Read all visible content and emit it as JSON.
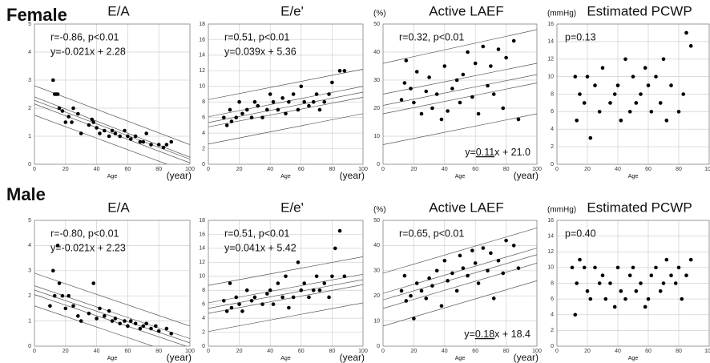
{
  "panel_labels": [
    "Female",
    "Male"
  ],
  "chart_data": [
    {
      "type": "scatter",
      "title": "E/A",
      "xlabel": "Age",
      "x_unit": "(year)",
      "xlim": [
        0,
        100
      ],
      "xticks": [
        0,
        20,
        40,
        60,
        80,
        100
      ],
      "ylim": [
        0,
        5
      ],
      "yticks": [
        0,
        1,
        2,
        3,
        4,
        5
      ],
      "grid": true,
      "color": "#000000",
      "annotations": [
        "r=-0.86, p<0.01",
        "y=-0.021x + 2.28"
      ],
      "x": [
        12,
        13,
        14,
        15,
        16,
        18,
        20,
        22,
        24,
        25,
        28,
        30,
        35,
        37,
        38,
        40,
        42,
        45,
        48,
        50,
        52,
        55,
        58,
        60,
        62,
        65,
        68,
        70,
        72,
        75,
        80,
        83,
        85,
        88
      ],
      "values": [
        3.0,
        2.5,
        2.5,
        2.5,
        2.0,
        1.9,
        1.5,
        1.7,
        1.5,
        2.0,
        1.8,
        1.1,
        1.4,
        1.6,
        1.5,
        1.3,
        1.1,
        1.2,
        1.0,
        1.2,
        1.1,
        1.0,
        1.2,
        1.0,
        0.9,
        1.0,
        0.8,
        0.8,
        1.1,
        0.7,
        0.7,
        0.6,
        0.7,
        0.8
      ],
      "lines": [
        {
          "x": [
            0,
            100
          ],
          "values": [
            2.8,
            0.7
          ]
        },
        {
          "x": [
            0,
            100
          ],
          "values": [
            2.4,
            0.25
          ]
        },
        {
          "x": [
            0,
            100
          ],
          "values": [
            2.28,
            0.18
          ]
        },
        {
          "x": [
            0,
            100
          ],
          "values": [
            2.15,
            0.05
          ]
        },
        {
          "x": [
            0,
            100
          ],
          "values": [
            1.75,
            -0.3
          ]
        }
      ]
    },
    {
      "type": "scatter",
      "title": "E/e'",
      "xlabel": "Age",
      "x_unit": "(year)",
      "xlim": [
        0,
        100
      ],
      "xticks": [
        0,
        20,
        40,
        60,
        80,
        100
      ],
      "ylim": [
        0,
        18
      ],
      "yticks": [
        0,
        2,
        4,
        6,
        8,
        10,
        12,
        14,
        16,
        18
      ],
      "grid": true,
      "color": "#000000",
      "annotations": [
        "r=0.51, p<0.01",
        "y=0.039x + 5.36"
      ],
      "x": [
        10,
        12,
        14,
        15,
        18,
        20,
        22,
        25,
        28,
        30,
        32,
        35,
        38,
        40,
        42,
        45,
        48,
        50,
        52,
        55,
        58,
        60,
        62,
        65,
        68,
        70,
        72,
        75,
        78,
        80,
        85,
        88
      ],
      "values": [
        6,
        5,
        7,
        5.5,
        6,
        8,
        6.5,
        7,
        6,
        8,
        7.5,
        6,
        7,
        9,
        8,
        7,
        8.5,
        6.5,
        8,
        9,
        7,
        10,
        8,
        7.5,
        8,
        9,
        7,
        8,
        9,
        10.5,
        12,
        12
      ],
      "lines": [
        {
          "x": [
            0,
            100
          ],
          "values": [
            8.3,
            12.2
          ]
        },
        {
          "x": [
            0,
            100
          ],
          "values": [
            6.1,
            10.0
          ]
        },
        {
          "x": [
            0,
            100
          ],
          "values": [
            5.36,
            9.26
          ]
        },
        {
          "x": [
            0,
            100
          ],
          "values": [
            4.8,
            8.6
          ]
        },
        {
          "x": [
            0,
            100
          ],
          "values": [
            2.6,
            6.5
          ]
        }
      ]
    },
    {
      "type": "scatter",
      "title": "Active LAEF",
      "y_unit": "(%)",
      "xlabel": "Age",
      "x_unit": "(year)",
      "xlim": [
        0,
        100
      ],
      "xticks": [
        0,
        20,
        40,
        60,
        80,
        100
      ],
      "ylim": [
        0,
        50
      ],
      "yticks": [
        0,
        10,
        20,
        30,
        40,
        50
      ],
      "grid": true,
      "color": "#000000",
      "annotations": [
        "r=0.32, p<0.01"
      ],
      "footnote": [
        "y=",
        {
          "text": "0.11",
          "underline": true
        },
        "x + 21.0"
      ],
      "x": [
        12,
        14,
        15,
        18,
        20,
        22,
        25,
        28,
        30,
        32,
        35,
        38,
        40,
        42,
        45,
        48,
        50,
        52,
        55,
        58,
        60,
        62,
        65,
        68,
        70,
        72,
        75,
        78,
        80,
        85,
        88
      ],
      "values": [
        23,
        29,
        37,
        27,
        22,
        33,
        18,
        26,
        31,
        20,
        25,
        16,
        35,
        19,
        27,
        30,
        22,
        32,
        40,
        24,
        36,
        18,
        42,
        28,
        35,
        25,
        41,
        20,
        38,
        44,
        16
      ],
      "lines": [
        {
          "x": [
            0,
            100
          ],
          "values": [
            36,
            48
          ]
        },
        {
          "x": [
            0,
            100
          ],
          "values": [
            25,
            36
          ]
        },
        {
          "x": [
            0,
            100
          ],
          "values": [
            21,
            32
          ]
        },
        {
          "x": [
            0,
            100
          ],
          "values": [
            18,
            29
          ]
        },
        {
          "x": [
            0,
            100
          ],
          "values": [
            7,
            18
          ]
        }
      ]
    },
    {
      "type": "scatter",
      "title": "Estimated PCWP",
      "y_unit": "(mmHg)",
      "xlabel": "Age",
      "xlim": [
        0,
        100
      ],
      "xticks": [
        0,
        20,
        40,
        60,
        80,
        100
      ],
      "ylim": [
        0,
        16
      ],
      "yticks": [
        0,
        2,
        4,
        6,
        8,
        10,
        12,
        14,
        16
      ],
      "grid": true,
      "color": "#000000",
      "annotations": [
        "p=0.13"
      ],
      "x": [
        12,
        13,
        15,
        18,
        20,
        22,
        25,
        28,
        30,
        35,
        38,
        40,
        42,
        45,
        48,
        50,
        52,
        55,
        58,
        60,
        62,
        65,
        68,
        70,
        72,
        75,
        80,
        83,
        85,
        88
      ],
      "values": [
        10,
        5,
        8,
        7,
        10,
        3,
        9,
        6,
        11,
        7,
        8,
        9,
        5,
        12,
        6,
        10,
        7,
        8,
        11,
        9,
        6,
        10,
        7,
        12,
        5,
        9,
        6,
        8,
        15,
        13.5
      ]
    },
    {
      "type": "scatter",
      "title": "E/A",
      "xlabel": "Age",
      "x_unit": "(year)",
      "xlim": [
        0,
        100
      ],
      "xticks": [
        0,
        20,
        40,
        60,
        80,
        100
      ],
      "ylim": [
        0,
        5
      ],
      "yticks": [
        0,
        1,
        2,
        3,
        4,
        5
      ],
      "grid": true,
      "color": "#000000",
      "annotations": [
        "r=-0.80, p<0.01",
        "y=-0.021x + 2.23"
      ],
      "x": [
        10,
        12,
        13,
        15,
        16,
        18,
        20,
        22,
        25,
        28,
        30,
        35,
        38,
        40,
        42,
        45,
        48,
        50,
        52,
        55,
        58,
        60,
        62,
        65,
        68,
        70,
        72,
        75,
        78,
        80,
        85,
        88
      ],
      "values": [
        1.6,
        3.0,
        2.0,
        4.0,
        2.5,
        2.0,
        1.5,
        2.0,
        1.6,
        1.2,
        1.0,
        1.3,
        2.5,
        1.1,
        1.5,
        1.2,
        1.4,
        1.0,
        1.1,
        0.9,
        1.0,
        0.8,
        1.0,
        0.9,
        0.7,
        0.8,
        0.9,
        0.7,
        0.8,
        0.6,
        0.7,
        0.5
      ],
      "lines": [
        {
          "x": [
            0,
            100
          ],
          "values": [
            2.9,
            0.8
          ]
        },
        {
          "x": [
            0,
            100
          ],
          "values": [
            2.4,
            0.3
          ]
        },
        {
          "x": [
            0,
            100
          ],
          "values": [
            2.23,
            0.13
          ]
        },
        {
          "x": [
            0,
            100
          ],
          "values": [
            2.05,
            -0.05
          ]
        },
        {
          "x": [
            0,
            100
          ],
          "values": [
            1.6,
            -0.5
          ]
        }
      ]
    },
    {
      "type": "scatter",
      "title": "E/e'",
      "xlabel": "Age",
      "x_unit": "(year)",
      "xlim": [
        0,
        100
      ],
      "xticks": [
        0,
        20,
        40,
        60,
        80,
        100
      ],
      "ylim": [
        0,
        18
      ],
      "yticks": [
        0,
        2,
        4,
        6,
        8,
        10,
        12,
        14,
        16,
        18
      ],
      "grid": true,
      "color": "#000000",
      "annotations": [
        "r=0.51, p<0.01",
        "y=0.041x + 5.42"
      ],
      "x": [
        10,
        12,
        14,
        15,
        18,
        20,
        22,
        25,
        28,
        30,
        35,
        38,
        40,
        42,
        45,
        48,
        50,
        52,
        55,
        58,
        60,
        62,
        65,
        68,
        70,
        72,
        75,
        78,
        80,
        82,
        85,
        88
      ],
      "values": [
        6.5,
        5,
        9,
        5.5,
        7,
        6,
        5,
        8,
        6.5,
        7,
        6,
        7.5,
        8,
        6,
        9,
        7,
        10,
        5.5,
        7,
        12,
        8,
        9,
        7,
        8,
        10,
        8,
        9,
        7,
        10,
        14,
        16.5,
        10
      ],
      "lines": [
        {
          "x": [
            0,
            100
          ],
          "values": [
            8.7,
            12.8
          ]
        },
        {
          "x": [
            0,
            100
          ],
          "values": [
            6.2,
            10.3
          ]
        },
        {
          "x": [
            0,
            100
          ],
          "values": [
            5.42,
            9.52
          ]
        },
        {
          "x": [
            0,
            100
          ],
          "values": [
            4.7,
            8.8
          ]
        },
        {
          "x": [
            0,
            100
          ],
          "values": [
            2.1,
            6.2
          ]
        }
      ]
    },
    {
      "type": "scatter",
      "title": "Active LAEF",
      "y_unit": "(%)",
      "xlabel": "Age",
      "x_unit": "(year)",
      "xlim": [
        0,
        100
      ],
      "xticks": [
        0,
        20,
        40,
        60,
        80,
        100
      ],
      "ylim": [
        0,
        50
      ],
      "yticks": [
        0,
        10,
        20,
        30,
        40,
        50
      ],
      "grid": true,
      "color": "#000000",
      "annotations": [
        "r=0.65, p<0.01"
      ],
      "footnote": [
        "y=",
        {
          "text": "0.18",
          "underline": true
        },
        "x + 18.4"
      ],
      "x": [
        12,
        14,
        15,
        18,
        20,
        22,
        25,
        28,
        30,
        32,
        35,
        38,
        40,
        42,
        45,
        48,
        50,
        52,
        55,
        58,
        60,
        62,
        65,
        68,
        70,
        72,
        75,
        78,
        80,
        85,
        88
      ],
      "values": [
        22,
        28,
        18,
        20,
        11,
        25,
        22,
        19,
        27,
        24,
        30,
        16,
        34,
        26,
        29,
        22,
        36,
        31,
        28,
        38,
        33,
        25,
        39,
        30,
        37,
        19,
        34,
        29,
        42,
        40,
        31
      ],
      "lines": [
        {
          "x": [
            0,
            100
          ],
          "values": [
            29,
            47
          ]
        },
        {
          "x": [
            0,
            100
          ],
          "values": [
            21,
            39
          ]
        },
        {
          "x": [
            0,
            100
          ],
          "values": [
            18.4,
            36.4
          ]
        },
        {
          "x": [
            0,
            100
          ],
          "values": [
            15,
            33
          ]
        },
        {
          "x": [
            0,
            100
          ],
          "values": [
            8,
            26
          ]
        }
      ]
    },
    {
      "type": "scatter",
      "title": "Estimated PCWP",
      "y_unit": "(mmHg)",
      "xlabel": "Age",
      "xlim": [
        0,
        100
      ],
      "xticks": [
        0,
        20,
        40,
        60,
        80,
        100
      ],
      "ylim": [
        0,
        16
      ],
      "yticks": [
        0,
        2,
        4,
        6,
        8,
        10,
        12,
        14,
        16
      ],
      "grid": true,
      "color": "#000000",
      "annotations": [
        "p=0.40"
      ],
      "x": [
        10,
        12,
        13,
        15,
        18,
        20,
        22,
        25,
        28,
        30,
        32,
        35,
        38,
        40,
        42,
        45,
        48,
        50,
        52,
        55,
        58,
        60,
        62,
        65,
        68,
        70,
        72,
        75,
        78,
        80,
        82,
        85,
        88
      ],
      "values": [
        10,
        4,
        8,
        11,
        10,
        7,
        6,
        10,
        8,
        9,
        6,
        8,
        5,
        10,
        7,
        6,
        9,
        10,
        7,
        8,
        5,
        6,
        9,
        10,
        7,
        8,
        11,
        9,
        8,
        10,
        6,
        9,
        11
      ]
    }
  ]
}
